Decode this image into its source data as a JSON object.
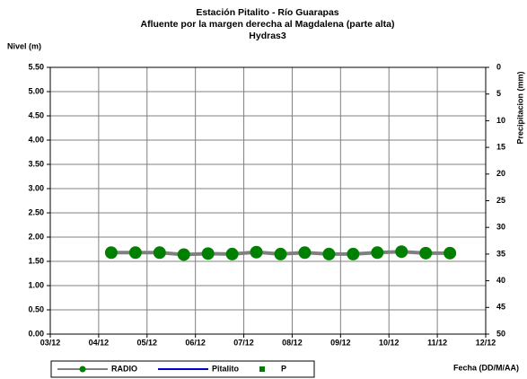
{
  "chart_data": {
    "type": "line",
    "title": [
      "Estación Pitalito  - Río Guarapas",
      "Afluente por la margen derecha al Magdalena (parte alta)",
      "Hydras3"
    ],
    "y_label": "Nivel (m)",
    "y2_label": "Precipitacion (mm)",
    "x_label": "Fecha (DD/M/AA)",
    "x": [
      4.26,
      4.76,
      5.26,
      5.76,
      6.26,
      6.76,
      7.26,
      7.76,
      8.26,
      8.76,
      9.26,
      9.76,
      10.26,
      10.76,
      11.26
    ],
    "xlim": [
      3,
      12
    ],
    "xticks": [
      {
        "value": 3,
        "label": "03/12"
      },
      {
        "value": 4,
        "label": "04/12"
      },
      {
        "value": 5,
        "label": "05/12"
      },
      {
        "value": 6,
        "label": "06/12"
      },
      {
        "value": 7,
        "label": "07/12"
      },
      {
        "value": 8,
        "label": "08/12"
      },
      {
        "value": 9,
        "label": "09/12"
      },
      {
        "value": 10,
        "label": "10/12"
      },
      {
        "value": 11,
        "label": "11/12"
      },
      {
        "value": 12,
        "label": "12/12"
      }
    ],
    "ylim": [
      0,
      5.5
    ],
    "yticks": [
      {
        "value": 0,
        "label": "0.00"
      },
      {
        "value": 0.5,
        "label": "0.50"
      },
      {
        "value": 1,
        "label": "1.00"
      },
      {
        "value": 1.5,
        "label": "1.50"
      },
      {
        "value": 2,
        "label": "2.00"
      },
      {
        "value": 2.5,
        "label": "2.50"
      },
      {
        "value": 3,
        "label": "3.00"
      },
      {
        "value": 3.5,
        "label": "3.50"
      },
      {
        "value": 4,
        "label": "4.00"
      },
      {
        "value": 4.5,
        "label": "4.50"
      },
      {
        "value": 5,
        "label": "5.00"
      },
      {
        "value": 5.5,
        "label": "5.50"
      }
    ],
    "y2lim": [
      0,
      50
    ],
    "y2_inverted": true,
    "y2ticks": [
      0,
      5,
      10,
      15,
      20,
      25,
      30,
      35,
      40,
      45,
      50
    ],
    "grid": true,
    "series": [
      {
        "name": "RADIO",
        "color": "#808080",
        "marker_color": "#008000",
        "marker": "circle",
        "line": true,
        "values": [
          1.68,
          1.68,
          1.68,
          1.64,
          1.66,
          1.65,
          1.69,
          1.65,
          1.68,
          1.65,
          1.65,
          1.68,
          1.7,
          1.67,
          1.67
        ]
      },
      {
        "name": "Pitalito",
        "color": "#0000cc",
        "marker": "none",
        "line": true,
        "values": [
          null,
          null,
          null,
          null,
          null,
          null,
          null,
          null,
          null,
          null,
          null,
          null,
          null,
          null,
          null
        ]
      },
      {
        "name": "P",
        "color": "#008000",
        "marker_color": "#008000",
        "marker": "square",
        "line": false,
        "axis": "y2",
        "values": [
          null,
          null,
          null,
          null,
          null,
          null,
          null,
          null,
          null,
          null,
          null,
          null,
          null,
          null,
          null
        ]
      }
    ]
  }
}
